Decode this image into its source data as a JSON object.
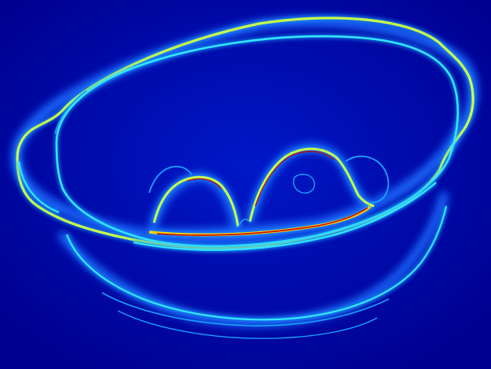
{
  "image": {
    "subject": "bowl-edge-map",
    "colors": {
      "background": "#00008f",
      "background_glow": "#0018c8",
      "halo": "#1e6cff",
      "edge_weak": "#1aa3ff",
      "edge_mid": "#33e6ff",
      "edge_strong": "#c8ff4a",
      "edge_hot": "#ffd400",
      "edge_peak": "#c40000"
    }
  }
}
